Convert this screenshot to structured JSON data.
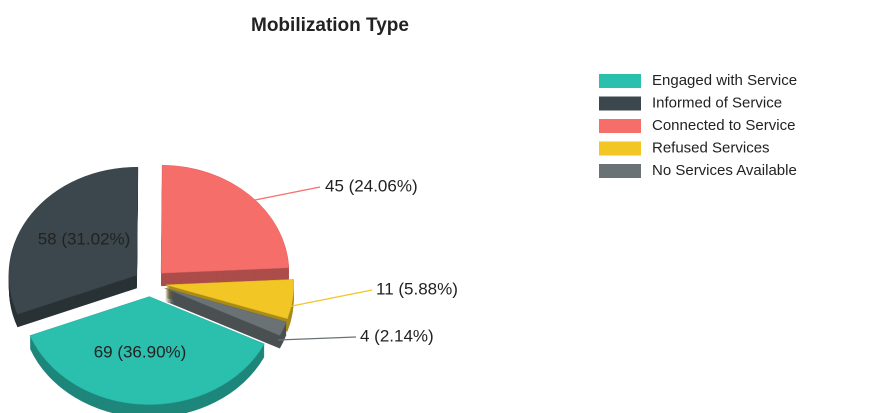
{
  "chart_data": {
    "type": "pie",
    "title": "Mobilization  Type",
    "categories": [
      "Engaged with Service",
      "Informed of Service",
      "Connected to Service",
      "Refused Services",
      "No Services Available"
    ],
    "values": [
      69,
      58,
      45,
      11,
      4
    ],
    "value_labels": [
      "69  (36.90%)",
      "58  (31.02%)",
      "45  (24.06%)",
      "11  (5.88%)",
      "4  (2.14%)"
    ],
    "colors": [
      "#2bbfae",
      "#3b474c",
      "#f66e6a",
      "#f2c624",
      "#6a7275"
    ],
    "legend": "right"
  }
}
